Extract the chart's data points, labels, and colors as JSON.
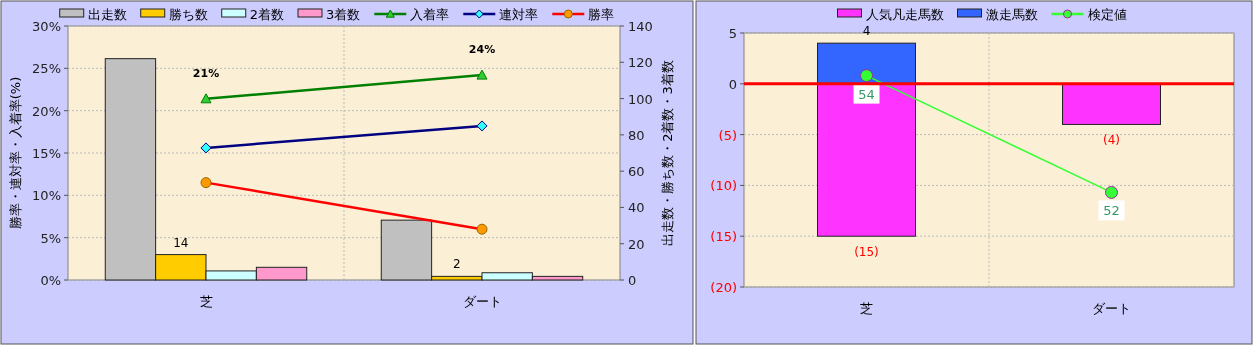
{
  "chart_data": [
    {
      "type": "bar",
      "categories": [
        "芝",
        "ダート"
      ],
      "ylabel": "勝率・連対率・入着率(%)",
      "y2label": "出走数・勝ち数・2着数・3着数",
      "ylim": [
        0,
        30
      ],
      "yticks": [
        {
          "value": 0,
          "label": "0%"
        },
        {
          "value": 5,
          "label": "5%"
        },
        {
          "value": 10,
          "label": "10%"
        },
        {
          "value": 15,
          "label": "15%"
        },
        {
          "value": 20,
          "label": "20%"
        },
        {
          "value": 25,
          "label": "25%"
        },
        {
          "value": 30,
          "label": "30%"
        }
      ],
      "y2lim": [
        0,
        140
      ],
      "y2ticks": [
        0,
        20,
        40,
        60,
        80,
        100,
        120,
        140
      ],
      "grid": true,
      "legend": "top",
      "series": [
        {
          "name": "出走数",
          "axis": "y2",
          "color": "#c0c0c0",
          "values": [
            122,
            33
          ]
        },
        {
          "name": "勝ち数",
          "axis": "y2",
          "color": "#ffcc00",
          "values": [
            14,
            2
          ],
          "value_labels": [
            "14",
            "2"
          ]
        },
        {
          "name": "2着数",
          "axis": "y2",
          "color": "#ccffff",
          "values": [
            5,
            4
          ]
        },
        {
          "name": "3着数",
          "axis": "y2",
          "color": "#ff99cc",
          "values": [
            7,
            2
          ]
        },
        {
          "name": "入着率",
          "type": "line",
          "axis": "y",
          "color": "#008000",
          "marker": "triangle",
          "values": [
            21.4,
            24.2
          ],
          "value_labels": [
            "21%",
            "24%"
          ]
        },
        {
          "name": "連対率",
          "type": "line",
          "axis": "y",
          "color": "#000080",
          "marker": "diamond",
          "values": [
            15.6,
            18.2
          ]
        },
        {
          "name": "勝率",
          "type": "line",
          "axis": "y",
          "color": "#ff0000",
          "marker": "circle",
          "values": [
            11.5,
            6.0
          ]
        }
      ]
    },
    {
      "type": "bar",
      "categories": [
        "芝",
        "ダート"
      ],
      "stacked": true,
      "ylim": [
        -20,
        5
      ],
      "yticks": [
        {
          "value": 5,
          "label": "5"
        },
        {
          "value": 0,
          "label": "0"
        },
        {
          "value": -5,
          "label": "(5)"
        },
        {
          "value": -10,
          "label": "(10)"
        },
        {
          "value": -15,
          "label": "(15)"
        },
        {
          "value": -20,
          "label": "(20)"
        }
      ],
      "y2lim": [
        50.38,
        54.73
      ],
      "grid": true,
      "legend": "top",
      "ref_lines": [
        {
          "axis": "y",
          "value": 0,
          "color": "#ff0000"
        }
      ],
      "series": [
        {
          "name": "人気凡走馬数",
          "axis": "y",
          "color": "#ff33ff",
          "values": [
            -15,
            -4
          ],
          "value_labels": [
            "(15)",
            "(4)"
          ]
        },
        {
          "name": "激走馬数",
          "axis": "y",
          "color": "#3366ff",
          "values": [
            4,
            null
          ],
          "value_labels": [
            "4",
            null
          ]
        },
        {
          "name": "検定値",
          "type": "line",
          "axis": "y2",
          "color": "#33ff33",
          "marker": "circle",
          "values": [
            54,
            52
          ],
          "value_labels": [
            "54",
            "52"
          ]
        }
      ]
    }
  ]
}
